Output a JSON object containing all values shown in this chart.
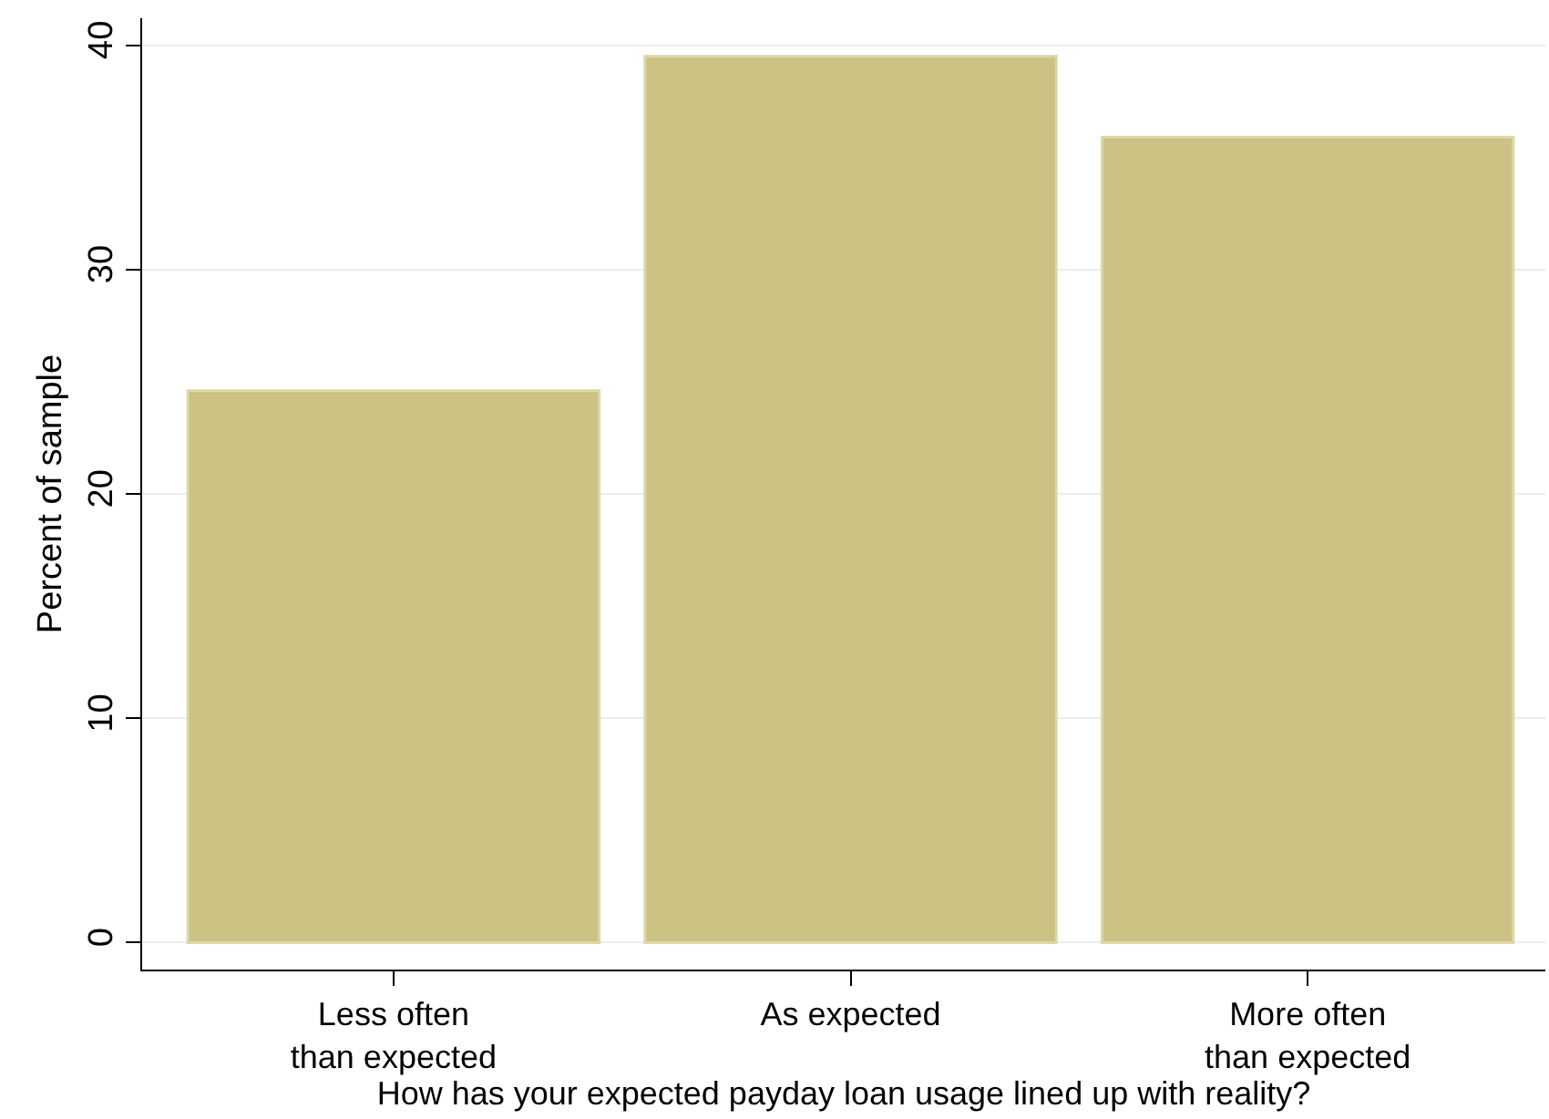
{
  "chart_data": {
    "type": "bar",
    "categories": [
      "Less often\nthan expected",
      "As expected",
      "More often\nthan expected"
    ],
    "values": [
      24.6,
      39.5,
      35.9
    ],
    "color": "#cbc283",
    "xlabel": "How has your expected payday loan usage lined up with reality?",
    "ylabel": "Percent of sample",
    "ylim": [
      -1.2,
      41.2
    ],
    "yticks": [
      0,
      10,
      20,
      30,
      40
    ],
    "grid": "y"
  }
}
